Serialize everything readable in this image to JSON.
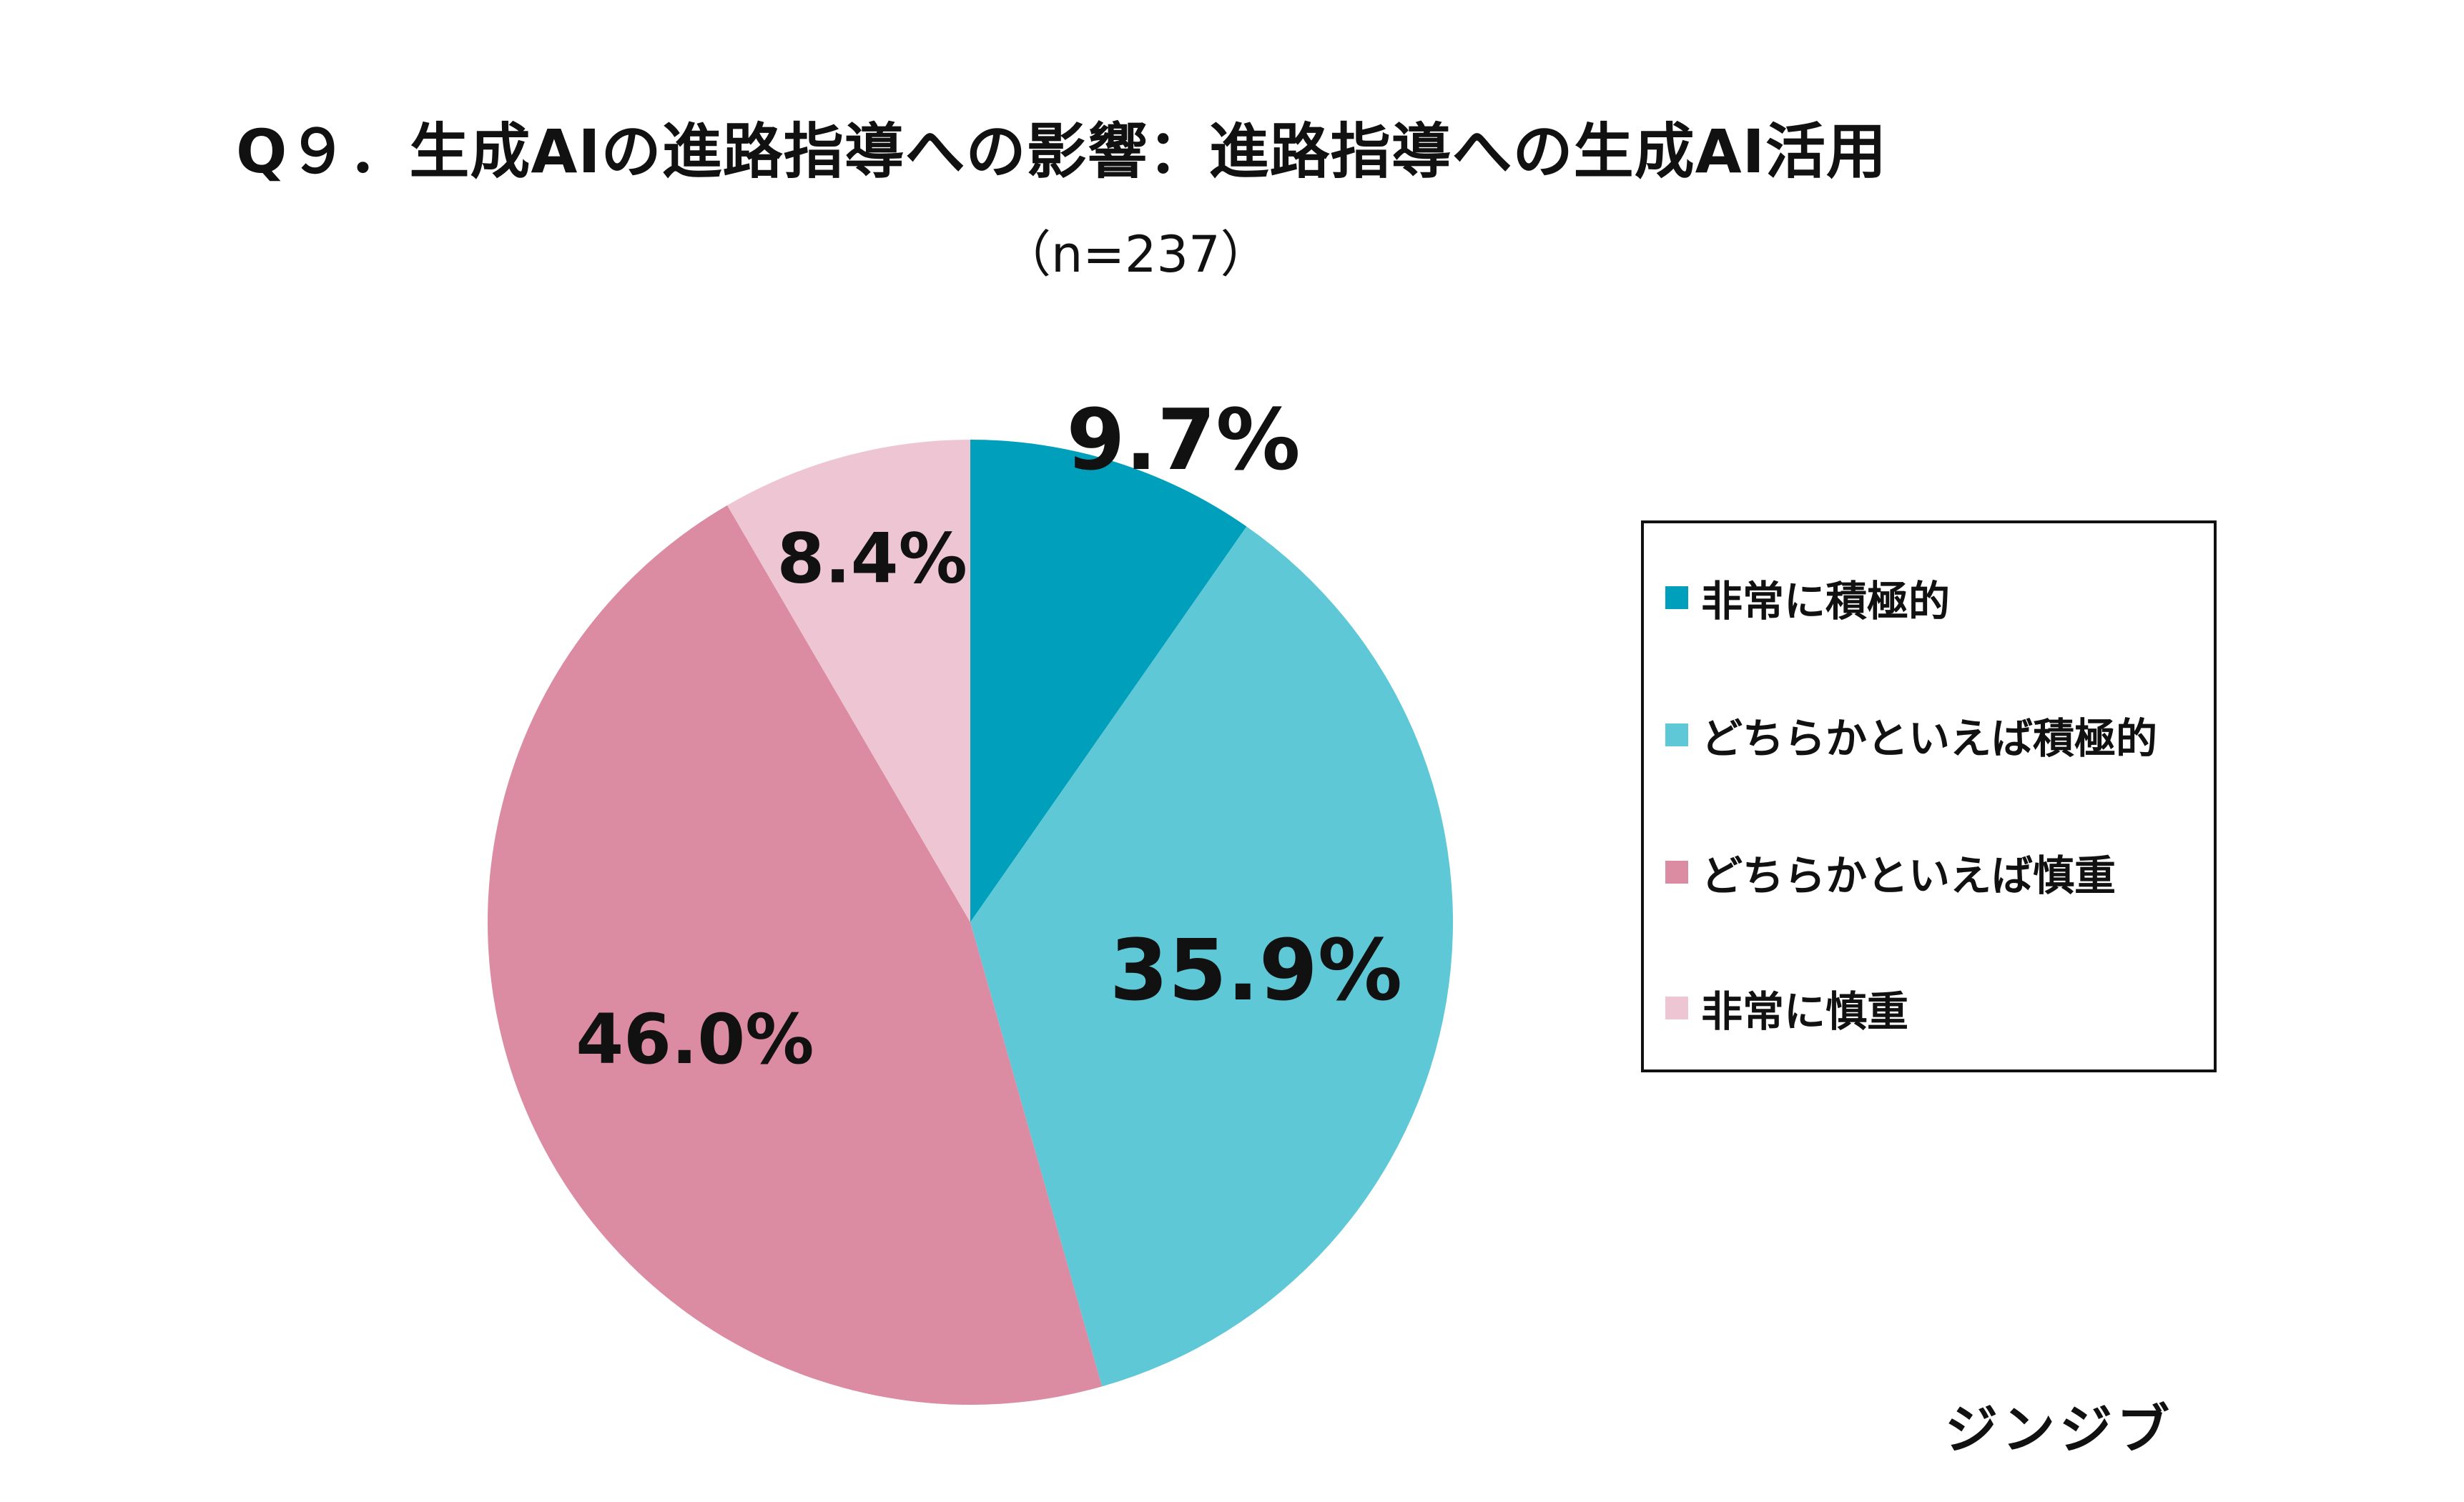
{
  "chart_data": {
    "type": "pie",
    "title": "Q９．生成AIの進路指導への影響：進路指導への生成AI活用",
    "subtitle": "（n=237）",
    "categories": [
      "非常に積極的",
      "どちらかといえば積極的",
      "どちらかといえば慎重",
      "非常に慎重"
    ],
    "values": [
      9.7,
      35.9,
      46.0,
      8.4
    ],
    "value_labels": [
      "9.7%",
      "35.9%",
      "46.0%",
      "8.4%"
    ],
    "colors": [
      "#00a0bd",
      "#5ec8d6",
      "#db8ba2",
      "#eec6d3"
    ],
    "start_angle": "12 o'clock",
    "direction": "clockwise",
    "legend_position": "right"
  },
  "brand": {
    "logo_text": "ジンジブ"
  }
}
